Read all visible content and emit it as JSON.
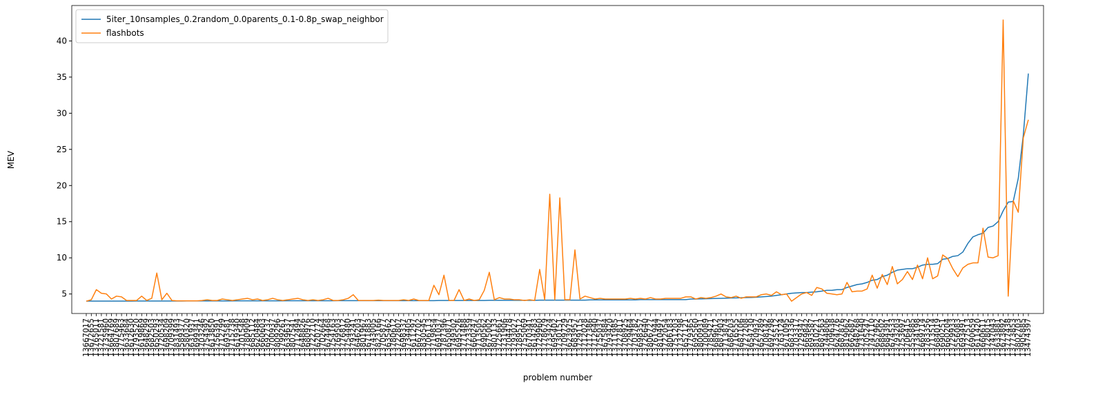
{
  "chart_data": {
    "type": "line",
    "x_label": "problem number",
    "y_label": "MEV",
    "ylim": [
      2.3,
      44.9
    ],
    "yticks": [
      5,
      10,
      15,
      20,
      25,
      30,
      35,
      40
    ],
    "legend": "upper left",
    "categories": [
      "13667017",
      "13672655",
      "13765011",
      "13721581",
      "13735960",
      "13664769",
      "13807689",
      "13775463",
      "13633684",
      "13612630",
      "13793520",
      "13619869",
      "13648299",
      "13682503",
      "13650293",
      "13720534",
      "13698209",
      "13709399",
      "13831493",
      "13589377",
      "13580320",
      "13631937",
      "13699341",
      "13703246",
      "13754392",
      "13613850",
      "13756391",
      "13712799",
      "13693581",
      "13715738",
      "13619340",
      "13701548",
      "13780909",
      "13685112",
      "13620484",
      "13660603",
      "13692737",
      "13700937",
      "13809296",
      "13799261",
      "13639637",
      "13807541",
      "13712494",
      "13648826",
      "13680976",
      "13722710",
      "13620774",
      "13702664",
      "13674468",
      "13754163",
      "13769503",
      "13776812",
      "13754480",
      "13793241",
      "13646203",
      "13801967",
      "13671883",
      "13743005",
      "13823166",
      "13705877",
      "13635462",
      "13780612",
      "13722807",
      "13698337",
      "13734405",
      "13611297",
      "13667702",
      "13830545",
      "13706113",
      "13719854",
      "13691037",
      "13787396",
      "13650871",
      "13749302",
      "13695526",
      "13771488",
      "13723359",
      "13660247",
      "13713505",
      "13690562",
      "13675002",
      "13801133",
      "13725661",
      "13731906",
      "13704478",
      "13793027",
      "13789512",
      "13755069",
      "13670341",
      "13614283",
      "13729960",
      "13778679",
      "13733424",
      "13695402",
      "13730151",
      "13709729",
      "13623975",
      "13683957",
      "13729115",
      "13712028",
      "13717386",
      "13712640",
      "13755037",
      "13675884",
      "13793420",
      "13711985",
      "13727811",
      "13708925",
      "13729464",
      "13703782",
      "13698357",
      "13726640",
      "13806727",
      "13761944",
      "13810497",
      "13722054",
      "13806183",
      "13751203",
      "13732798",
      "13657121",
      "13779365",
      "13695560",
      "13800931",
      "13700089",
      "13785421",
      "13689612",
      "13687903",
      "13713874",
      "13686203",
      "13716555",
      "13687106",
      "13727208",
      "13654730",
      "13720937",
      "13657289",
      "13708142",
      "13697298",
      "13735512",
      "13763124",
      "13671095",
      "13687336",
      "13703317",
      "13729347",
      "13669842",
      "13693587",
      "13810221",
      "13687563",
      "13744806",
      "13709638",
      "13624776",
      "13687876",
      "13819062",
      "13662687",
      "13648268",
      "13731640",
      "13705247",
      "13747110",
      "13657962",
      "13688502",
      "13684391",
      "13674533",
      "13793203",
      "13753697",
      "13706415",
      "13555885",
      "13734198",
      "13669714",
      "13783356",
      "13713514",
      "13684019",
      "13690251",
      "13660204",
      "13729933",
      "13556083",
      "13693491",
      "13727513",
      "13690659",
      "13611420",
      "13660611",
      "13728015",
      "13747043",
      "13633881",
      "13673892",
      "13777438",
      "13773853",
      "13802703",
      "13905885",
      "13474397"
    ],
    "series": [
      {
        "name": "5iter_10nsamples_0.2random_0.0parents_0.1-0.8p_swap_neighbor",
        "color": "#1f77b4",
        "values": [
          4.02,
          4.02,
          4.02,
          4.02,
          4.02,
          4.02,
          4.02,
          4.02,
          4.02,
          4.02,
          4.03,
          4.03,
          4.03,
          4.03,
          4.03,
          4.03,
          4.03,
          4.03,
          4.03,
          4.03,
          4.04,
          4.04,
          4.04,
          4.04,
          4.04,
          4.04,
          4.04,
          4.04,
          4.04,
          4.04,
          4.05,
          4.05,
          4.05,
          4.05,
          4.05,
          4.05,
          4.05,
          4.05,
          4.05,
          4.05,
          4.06,
          4.06,
          4.06,
          4.06,
          4.06,
          4.06,
          4.06,
          4.06,
          4.06,
          4.06,
          4.07,
          4.07,
          4.07,
          4.07,
          4.07,
          4.07,
          4.07,
          4.07,
          4.07,
          4.07,
          4.08,
          4.08,
          4.08,
          4.08,
          4.08,
          4.08,
          4.08,
          4.08,
          4.08,
          4.08,
          4.1,
          4.1,
          4.1,
          4.1,
          4.1,
          4.1,
          4.1,
          4.1,
          4.1,
          4.1,
          4.12,
          4.12,
          4.12,
          4.12,
          4.12,
          4.12,
          4.12,
          4.12,
          4.12,
          4.12,
          4.15,
          4.15,
          4.15,
          4.15,
          4.15,
          4.15,
          4.15,
          4.15,
          4.15,
          4.15,
          4.18,
          4.18,
          4.18,
          4.18,
          4.18,
          4.18,
          4.18,
          4.18,
          4.18,
          4.18,
          4.22,
          4.22,
          4.22,
          4.22,
          4.22,
          4.22,
          4.22,
          4.22,
          4.22,
          4.22,
          4.3,
          4.3,
          4.32,
          4.34,
          4.36,
          4.38,
          4.4,
          4.42,
          4.44,
          4.46,
          4.48,
          4.5,
          4.52,
          4.55,
          4.6,
          4.65,
          4.7,
          4.8,
          4.9,
          5.0,
          5.1,
          5.15,
          5.2,
          5.2,
          5.25,
          5.3,
          5.4,
          5.5,
          5.5,
          5.6,
          5.6,
          5.9,
          6.1,
          6.3,
          6.4,
          6.6,
          6.9,
          7.0,
          7.4,
          7.6,
          8.0,
          8.3,
          8.4,
          8.5,
          8.5,
          8.7,
          9.0,
          9.1,
          9.1,
          9.2,
          9.8,
          9.9,
          10.2,
          10.3,
          10.8,
          12.0,
          12.9,
          13.2,
          13.4,
          14.2,
          14.4,
          15.0,
          16.5,
          17.7,
          17.8,
          21.0,
          27.0,
          35.5
        ]
      },
      {
        "name": "flashbots",
        "color": "#ff7f0e",
        "values": [
          4.0,
          4.2,
          5.6,
          5.1,
          5.0,
          4.3,
          4.7,
          4.6,
          4.1,
          4.1,
          4.1,
          4.7,
          4.1,
          4.4,
          7.9,
          4.2,
          5.1,
          4.1,
          4.05,
          4.05,
          4.05,
          4.05,
          4.05,
          4.1,
          4.2,
          4.1,
          4.1,
          4.3,
          4.2,
          4.1,
          4.2,
          4.3,
          4.4,
          4.2,
          4.3,
          4.1,
          4.2,
          4.4,
          4.2,
          4.1,
          4.2,
          4.3,
          4.4,
          4.2,
          4.1,
          4.2,
          4.1,
          4.2,
          4.4,
          4.1,
          4.1,
          4.2,
          4.4,
          4.9,
          4.1,
          4.1,
          4.1,
          4.1,
          4.15,
          4.1,
          4.1,
          4.1,
          4.1,
          4.2,
          4.1,
          4.3,
          4.1,
          4.1,
          4.1,
          6.2,
          4.9,
          7.6,
          4.1,
          4.1,
          5.6,
          4.1,
          4.3,
          4.1,
          4.2,
          5.5,
          8.0,
          4.2,
          4.5,
          4.3,
          4.3,
          4.2,
          4.2,
          4.1,
          4.2,
          4.1,
          8.4,
          4.2,
          18.8,
          4.2,
          18.3,
          4.2,
          4.2,
          11.1,
          4.3,
          4.7,
          4.5,
          4.3,
          4.4,
          4.3,
          4.3,
          4.3,
          4.3,
          4.3,
          4.4,
          4.3,
          4.4,
          4.3,
          4.5,
          4.3,
          4.3,
          4.4,
          4.4,
          4.4,
          4.4,
          4.6,
          4.6,
          4.3,
          4.5,
          4.4,
          4.5,
          4.7,
          5.0,
          4.6,
          4.5,
          4.7,
          4.4,
          4.6,
          4.6,
          4.6,
          4.9,
          5.0,
          4.8,
          5.3,
          4.9,
          5.0,
          4.0,
          4.5,
          5.0,
          5.2,
          4.8,
          5.9,
          5.7,
          5.1,
          5.0,
          4.9,
          5.0,
          6.6,
          5.3,
          5.4,
          5.4,
          5.7,
          7.6,
          5.8,
          7.7,
          6.3,
          8.8,
          6.4,
          7.0,
          8.1,
          7.0,
          9.0,
          7.1,
          10.0,
          7.1,
          7.5,
          10.4,
          9.9,
          8.5,
          7.4,
          8.6,
          9.1,
          9.3,
          9.3,
          14.1,
          10.1,
          10.0,
          10.3,
          42.9,
          4.7,
          17.9,
          16.3,
          26.6,
          29.1
        ]
      }
    ]
  }
}
